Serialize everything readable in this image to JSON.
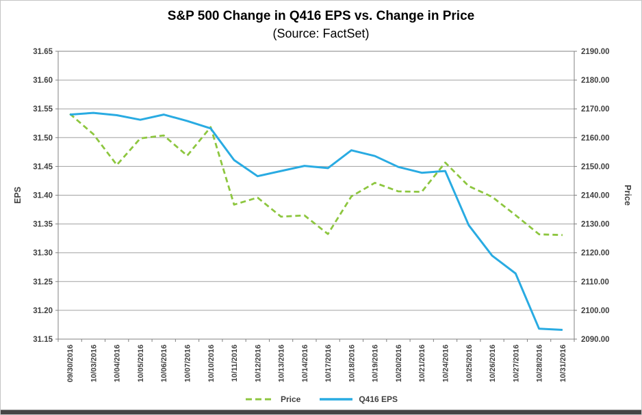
{
  "title": "S&P 500 Change in Q416 EPS vs. Change in Price",
  "subtitle": "(Source: FactSet)",
  "legend": {
    "items": [
      {
        "label": "Price",
        "style": "dashed",
        "color": "#8DC63F"
      },
      {
        "label": "Q416 EPS",
        "style": "solid",
        "color": "#29ABE2"
      }
    ]
  },
  "colors": {
    "price_line": "#8DC63F",
    "eps_line": "#29ABE2",
    "gridline": "#A0A0A0",
    "plot_border": "#808080",
    "tick_text": "#404040",
    "axis_title_text": "#3f3f3f"
  },
  "chart_data": {
    "type": "line",
    "title": "S&P 500 Change in Q416 EPS vs. Change in Price",
    "subtitle": "(Source: FactSet)",
    "grid": true,
    "legend_position": "bottom",
    "categories": [
      "09/30/2016",
      "10/03/2016",
      "10/04/2016",
      "10/05/2016",
      "10/06/2016",
      "10/07/2016",
      "10/10/2016",
      "10/11/2016",
      "10/12/2016",
      "10/13/2016",
      "10/14/2016",
      "10/17/2016",
      "10/18/2016",
      "10/19/2016",
      "10/20/2016",
      "10/21/2016",
      "10/24/2016",
      "10/25/2016",
      "10/26/2016",
      "10/27/2016",
      "10/28/2016",
      "10/31/2016"
    ],
    "series": [
      {
        "name": "Price",
        "axis": "right",
        "style": "dashed",
        "color": "#8DC63F",
        "values": [
          2168.27,
          2161.2,
          2150.49,
          2159.73,
          2160.77,
          2153.74,
          2163.66,
          2136.73,
          2139.18,
          2132.55,
          2132.98,
          2126.5,
          2139.6,
          2144.29,
          2141.34,
          2141.16,
          2151.33,
          2143.16,
          2139.43,
          2133.04,
          2126.41,
          2126.15
        ]
      },
      {
        "name": "Q416 EPS",
        "axis": "left",
        "style": "solid",
        "color": "#29ABE2",
        "values": [
          31.54,
          31.543,
          31.539,
          31.531,
          31.54,
          31.529,
          31.516,
          31.461,
          31.433,
          31.442,
          31.451,
          31.447,
          31.478,
          31.468,
          31.449,
          31.439,
          31.442,
          31.348,
          31.295,
          31.264,
          31.168,
          31.166
        ]
      }
    ],
    "left_axis": {
      "label": "EPS",
      "min": 31.15,
      "max": 31.65,
      "step": 0.05,
      "ticks": [
        "31.65",
        "31.60",
        "31.55",
        "31.50",
        "31.45",
        "31.40",
        "31.35",
        "31.30",
        "31.25",
        "31.20",
        "31.15"
      ]
    },
    "right_axis": {
      "label": "Price",
      "min": 2090,
      "max": 2190,
      "step": 10,
      "ticks": [
        "2190.00",
        "2180.00",
        "2170.00",
        "2160.00",
        "2150.00",
        "2140.00",
        "2130.00",
        "2120.00",
        "2110.00",
        "2100.00",
        "2090.00"
      ]
    }
  }
}
